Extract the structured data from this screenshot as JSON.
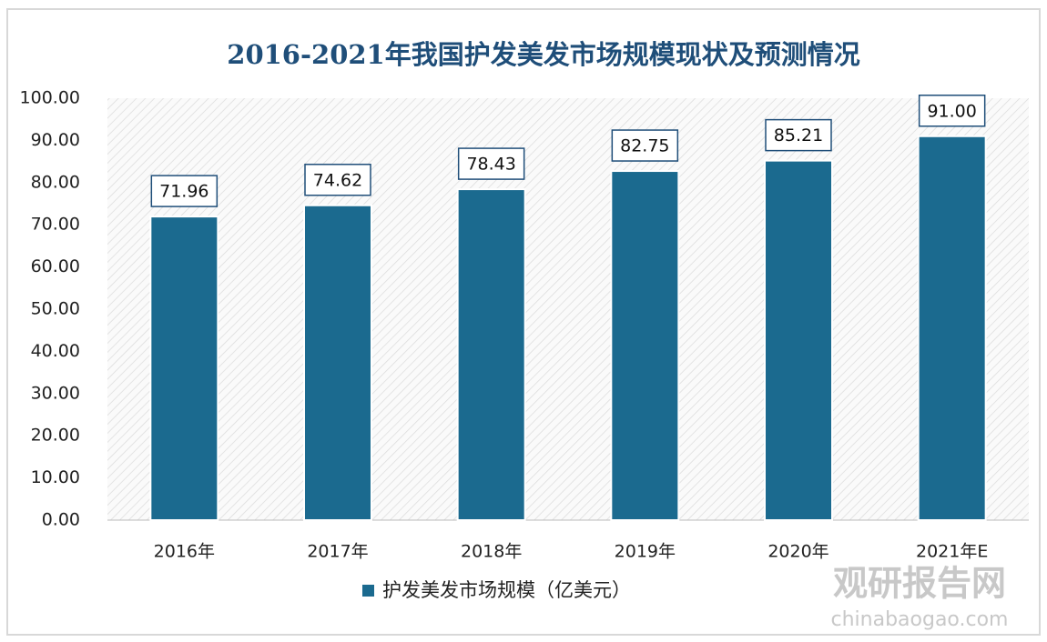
{
  "chart_data": {
    "type": "bar",
    "title": "2016-2021年我国护发美发市场规模现状及预测情况",
    "categories": [
      "2016年",
      "2017年",
      "2018年",
      "2019年",
      "2020年",
      "2021年E"
    ],
    "series": [
      {
        "name": "护发美发市场规模（亿美元）",
        "color": "#1b6a8f",
        "values": [
          71.96,
          74.62,
          78.43,
          82.75,
          85.21,
          91
        ],
        "value_labels": [
          "71.96",
          "74.62",
          "78.43",
          "82.75",
          "85.21",
          "91.00"
        ]
      }
    ],
    "ylim": [
      0,
      100
    ],
    "yticks": [
      {
        "value": 0,
        "label": "0.00"
      },
      {
        "value": 10,
        "label": "10.00"
      },
      {
        "value": 20,
        "label": "20.00"
      },
      {
        "value": 30,
        "label": "30.00"
      },
      {
        "value": 40,
        "label": "40.00"
      },
      {
        "value": 50,
        "label": "50.00"
      },
      {
        "value": 60,
        "label": "60.00"
      },
      {
        "value": 70,
        "label": "70.00"
      },
      {
        "value": 80,
        "label": "80.00"
      },
      {
        "value": 90,
        "label": "90.00"
      },
      {
        "value": 100,
        "label": "100.00"
      }
    ],
    "grid": false,
    "legend": "bottom"
  },
  "watermark": {
    "name": "观研报告网",
    "url": "chinabaogao.com"
  }
}
